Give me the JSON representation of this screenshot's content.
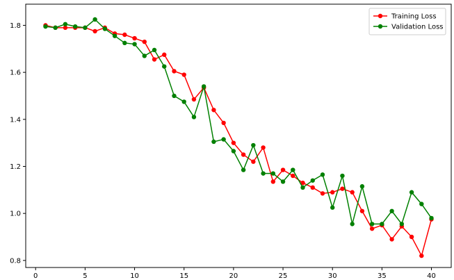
{
  "chart_data": {
    "type": "line",
    "title": "",
    "xlabel": "",
    "ylabel": "",
    "xlim": [
      -1,
      42
    ],
    "ylim": [
      0.77,
      1.89
    ],
    "xticks": [
      0,
      5,
      10,
      15,
      20,
      25,
      30,
      35,
      40
    ],
    "yticks": [
      0.8,
      1.0,
      1.2,
      1.4,
      1.6,
      1.8
    ],
    "xtick_labels": [
      "0",
      "5",
      "10",
      "15",
      "20",
      "25",
      "30",
      "35",
      "40"
    ],
    "ytick_labels": [
      "0.8",
      "1.0",
      "1.2",
      "1.4",
      "1.6",
      "1.8"
    ],
    "grid": false,
    "legend_position": "top-right",
    "x": [
      1,
      2,
      3,
      4,
      5,
      6,
      7,
      8,
      9,
      10,
      11,
      12,
      13,
      14,
      15,
      16,
      17,
      18,
      19,
      20,
      21,
      22,
      23,
      24,
      25,
      26,
      27,
      28,
      29,
      30,
      31,
      32,
      33,
      34,
      35,
      36,
      37,
      38,
      39,
      40
    ],
    "series": [
      {
        "name": "Training Loss",
        "color": "#ff0000",
        "values": [
          1.8,
          1.79,
          1.79,
          1.79,
          1.79,
          1.775,
          1.79,
          1.765,
          1.76,
          1.745,
          1.73,
          1.655,
          1.675,
          1.605,
          1.59,
          1.485,
          1.535,
          1.44,
          1.385,
          1.3,
          1.25,
          1.22,
          1.28,
          1.135,
          1.185,
          1.16,
          1.13,
          1.11,
          1.085,
          1.09,
          1.105,
          1.09,
          1.01,
          0.935,
          0.95,
          0.89,
          0.945,
          0.9,
          0.82,
          0.975
        ]
      },
      {
        "name": "Validation Loss",
        "color": "#008000",
        "values": [
          1.795,
          1.79,
          1.805,
          1.795,
          1.79,
          1.825,
          1.785,
          1.755,
          1.725,
          1.72,
          1.67,
          1.695,
          1.625,
          1.5,
          1.475,
          1.41,
          1.54,
          1.305,
          1.315,
          1.265,
          1.185,
          1.29,
          1.17,
          1.17,
          1.135,
          1.185,
          1.11,
          1.14,
          1.165,
          1.025,
          1.16,
          0.955,
          1.115,
          0.955,
          0.955,
          1.01,
          0.955,
          1.09,
          1.04,
          0.98
        ]
      }
    ]
  }
}
